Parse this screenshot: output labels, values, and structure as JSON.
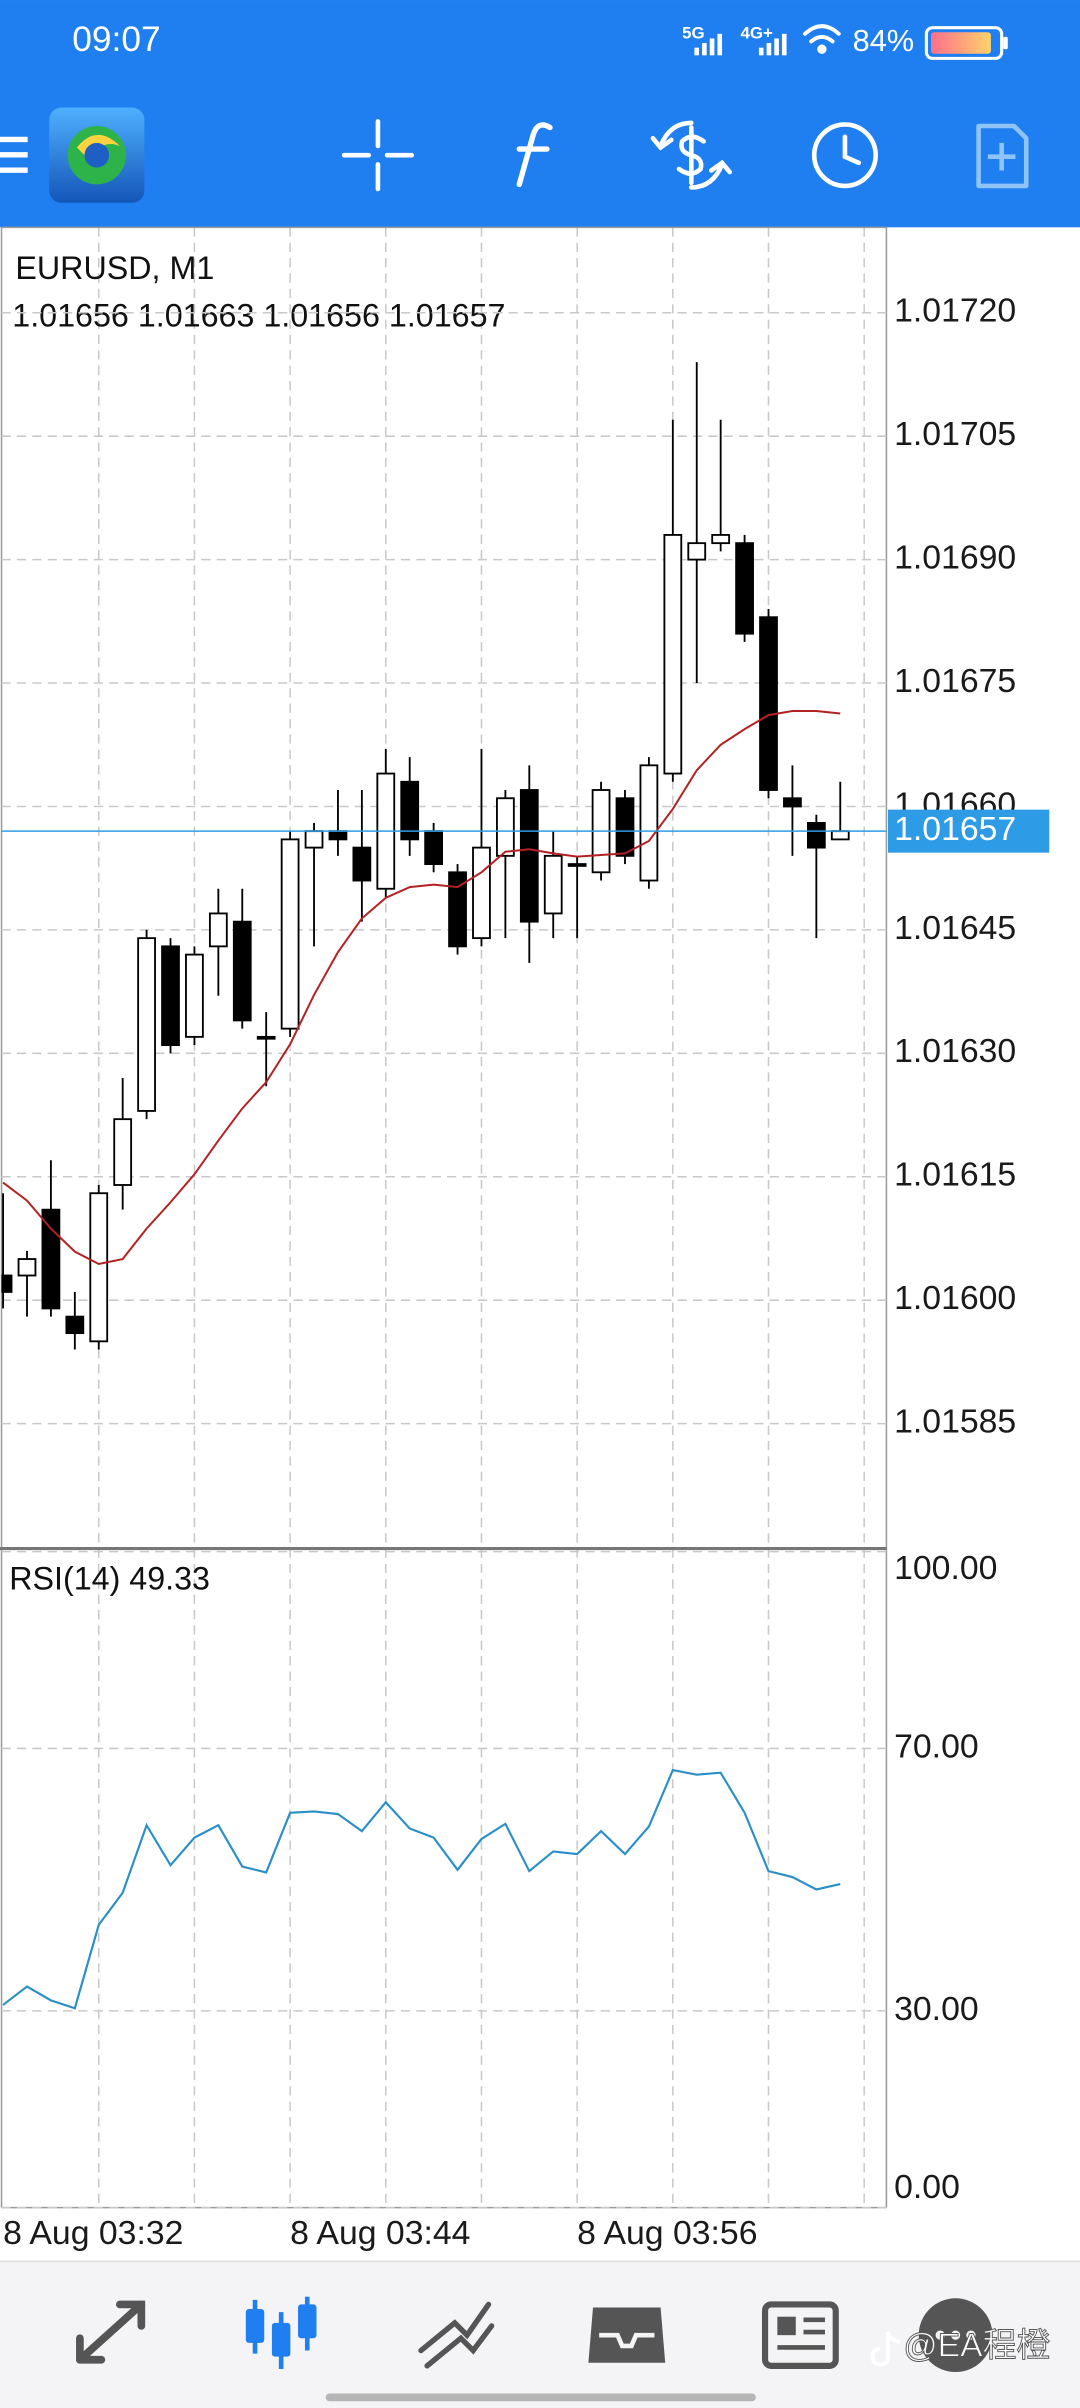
{
  "status_bar": {
    "time": "09:07",
    "network_1": "5G",
    "network_2": "4G+",
    "battery": "84%"
  },
  "chart_data": [
    {
      "type": "candlestick",
      "title": "EURUSD, M1",
      "ohlc_label": "1.01656 1.01663 1.01656 1.01657",
      "categories": [
        "8 Aug 03:32",
        null,
        null,
        null,
        null,
        null,
        null,
        null,
        null,
        null,
        null,
        null,
        "8 Aug 03:44",
        null,
        null,
        null,
        null,
        null,
        null,
        null,
        null,
        null,
        null,
        null,
        "8 Aug 03:56",
        null,
        null,
        null,
        null,
        null,
        null,
        null,
        null,
        null,
        null,
        null
      ],
      "open": [
        1.01603,
        1.01603,
        1.01611,
        1.01598,
        1.01595,
        1.01614,
        1.01623,
        1.01643,
        1.01632,
        1.01643,
        1.01646,
        1.01632,
        1.01633,
        1.01655,
        1.01657,
        1.01655,
        1.0165,
        1.01663,
        1.01657,
        1.01652,
        1.01644,
        1.01654,
        1.01662,
        1.01647,
        1.01653,
        1.01652,
        1.01661,
        1.01651,
        1.01664,
        1.0169,
        1.01692,
        1.01692,
        1.01683,
        1.01661,
        1.01658,
        1.01656
      ],
      "high": [
        1.01613,
        1.01606,
        1.01617,
        1.01601,
        1.01614,
        1.01627,
        1.01645,
        1.01644,
        1.01643,
        1.0165,
        1.0165,
        1.01635,
        1.01657,
        1.01658,
        1.01662,
        1.01662,
        1.01667,
        1.01666,
        1.01658,
        1.01653,
        1.01667,
        1.01662,
        1.01665,
        1.01657,
        1.01654,
        1.01663,
        1.01662,
        1.01666,
        1.01707,
        1.01714,
        1.01707,
        1.01693,
        1.01684,
        1.01665,
        1.01659,
        1.01663
      ],
      "low": [
        1.01599,
        1.01598,
        1.01598,
        1.01594,
        1.01594,
        1.01611,
        1.01622,
        1.0163,
        1.01631,
        1.01637,
        1.01633,
        1.01626,
        1.01632,
        1.01643,
        1.01654,
        1.01646,
        1.01649,
        1.01654,
        1.01652,
        1.01642,
        1.01643,
        1.01644,
        1.01641,
        1.01644,
        1.01644,
        1.01651,
        1.01653,
        1.0165,
        1.01663,
        1.01675,
        1.01691,
        1.0168,
        1.01661,
        1.01654,
        1.01644,
        1.01656
      ],
      "close": [
        1.01601,
        1.01605,
        1.01599,
        1.01596,
        1.01613,
        1.01622,
        1.01644,
        1.01631,
        1.01642,
        1.01647,
        1.01634,
        1.01632,
        1.01656,
        1.01657,
        1.01656,
        1.01651,
        1.01664,
        1.01656,
        1.01653,
        1.01643,
        1.01655,
        1.01661,
        1.01646,
        1.01654,
        1.01653,
        1.01662,
        1.01654,
        1.01665,
        1.01693,
        1.01692,
        1.01693,
        1.01681,
        1.01662,
        1.0166,
        1.01655,
        1.01657
      ],
      "up_color": "#ffffff",
      "down_color": "#000000",
      "overlays": [
        {
          "color": "#b22222",
          "values": [
            1.016143,
            1.016121,
            1.016087,
            1.016059,
            1.016044,
            1.01605,
            1.016087,
            1.016119,
            1.016153,
            1.016194,
            1.016233,
            1.016265,
            1.016311,
            1.016371,
            1.016423,
            1.016464,
            1.016489,
            1.016502,
            1.016505,
            1.016502,
            1.01652,
            1.016545,
            1.016548,
            1.016543,
            1.016539,
            1.016541,
            1.016543,
            1.016558,
            1.016597,
            1.016644,
            1.016675,
            1.016694,
            1.016711,
            1.016716,
            1.016716,
            1.016713
          ]
        }
      ],
      "current_price": 1.01657,
      "current_price_color": "#2e9be6",
      "ylim": [
        1.0157,
        1.0173
      ],
      "yticks": [
        1.01585,
        {
          "value": 1.016,
          "label": "1.01600"
        },
        1.01615,
        {
          "value": 1.0163,
          "label": "1.01630"
        },
        1.01645,
        {
          "value": 1.0166,
          "label": "1.01660"
        },
        1.01675,
        {
          "value": 1.0169,
          "label": "1.01690"
        },
        1.01705,
        {
          "value": 1.0172,
          "label": "1.01720"
        }
      ],
      "grid": true
    },
    {
      "type": "line",
      "title": "RSI(14) 49.33",
      "color": "#2b8fc7",
      "values": [
        30.9,
        33.7,
        31.6,
        30.4,
        43.1,
        48,
        58.3,
        52.2,
        56.4,
        58.3,
        52,
        51.1,
        60.2,
        60.4,
        60,
        57.4,
        61.8,
        57.8,
        56.4,
        51.5,
        56.2,
        58.5,
        51.3,
        54.3,
        53.9,
        57.4,
        53.9,
        58.1,
        66.7,
        66,
        66.3,
        60.2,
        51.3,
        50.4,
        48.5,
        49.33
      ],
      "ylim": [
        0,
        100
      ],
      "yticks": [
        {
          "value": 0,
          "label": "0.00"
        },
        {
          "value": 30,
          "label": "30.00"
        },
        {
          "value": 70,
          "label": "70.00"
        },
        {
          "value": 100,
          "label": "100.00"
        }
      ],
      "grid": true
    }
  ],
  "watermark": "@EA程橙"
}
